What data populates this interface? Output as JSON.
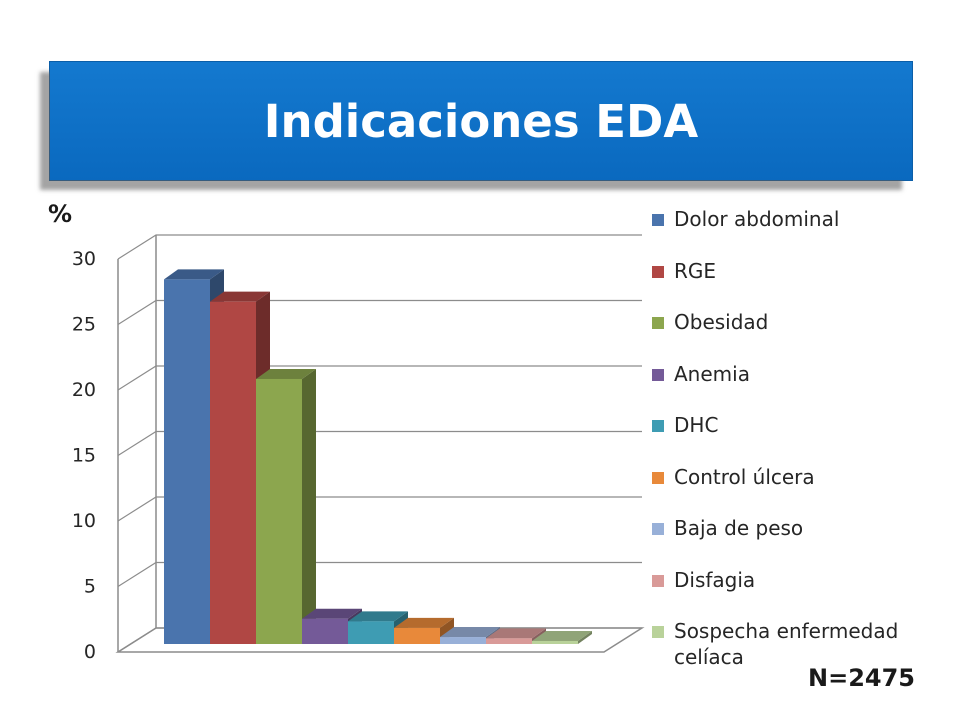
{
  "title": "Indicaciones EDA",
  "footer_note": "N=2475",
  "chart_data": {
    "type": "bar",
    "title": "Indicaciones EDA",
    "ylabel": "%",
    "xlabel": "",
    "ylim": [
      0,
      30
    ],
    "yticks": [
      0,
      5,
      10,
      15,
      20,
      25,
      30
    ],
    "grid": true,
    "legend_position": "right",
    "series": [
      {
        "name": "Dolor abdominal",
        "values": [
          28.9
        ],
        "color": "#4a74ad"
      },
      {
        "name": "RGE",
        "values": [
          27.2
        ],
        "color": "#b04744"
      },
      {
        "name": "Obesidad",
        "values": [
          21.3
        ],
        "color": "#8ca64e"
      },
      {
        "name": "Anemia",
        "values": [
          3.0
        ],
        "color": "#745a98"
      },
      {
        "name": "DHC",
        "values": [
          2.8
        ],
        "color": "#3e9cb3"
      },
      {
        "name": "Control úlcera",
        "values": [
          2.3
        ],
        "color": "#e8893a"
      },
      {
        "name": "Baja de peso",
        "values": [
          1.6
        ],
        "color": "#98b0d8"
      },
      {
        "name": "Disfagia",
        "values": [
          1.5
        ],
        "color": "#d99a98"
      },
      {
        "name": "Sospecha enfermedad celíaca",
        "values": [
          1.3
        ],
        "color": "#b9d29a"
      }
    ]
  }
}
